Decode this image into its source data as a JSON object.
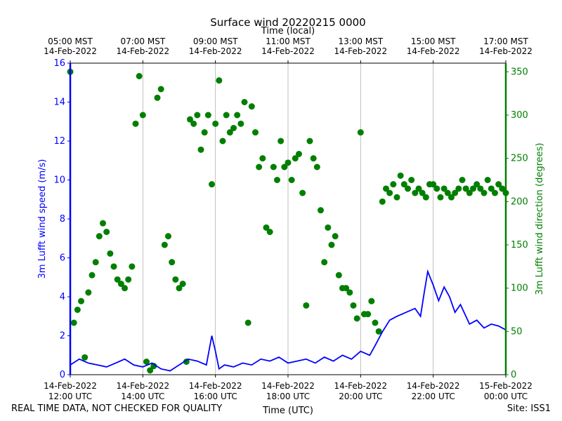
{
  "chart_data": {
    "type": "line+scatter",
    "title": "Surface wind 20220215 0000",
    "top_xlabel": "Time (local)",
    "xlabel": "Time (UTC)",
    "left_ylabel": "3m Lufft wind speed (m/s)",
    "right_ylabel": "3m Lufft wind direction (degrees)",
    "xlim_hours_utc": [
      12,
      24
    ],
    "left_ylim": [
      0,
      16
    ],
    "right_ylim": [
      0,
      360
    ],
    "left_yticks": [
      "0",
      "2",
      "4",
      "6",
      "8",
      "10",
      "12",
      "14",
      "16"
    ],
    "right_yticks": [
      "0",
      "50",
      "100",
      "150",
      "200",
      "250",
      "300",
      "350"
    ],
    "bottom_ticks": [
      {
        "h": 12,
        "date": "14-Feb-2022",
        "time": "12:00 UTC"
      },
      {
        "h": 14,
        "date": "14-Feb-2022",
        "time": "14:00 UTC"
      },
      {
        "h": 16,
        "date": "14-Feb-2022",
        "time": "16:00 UTC"
      },
      {
        "h": 18,
        "date": "14-Feb-2022",
        "time": "18:00 UTC"
      },
      {
        "h": 20,
        "date": "14-Feb-2022",
        "time": "20:00 UTC"
      },
      {
        "h": 22,
        "date": "14-Feb-2022",
        "time": "22:00 UTC"
      },
      {
        "h": 24,
        "date": "15-Feb-2022",
        "time": "00:00 UTC"
      }
    ],
    "top_ticks": [
      {
        "h": 12,
        "time": "05:00 MST",
        "date": "14-Feb-2022"
      },
      {
        "h": 14,
        "time": "07:00 MST",
        "date": "14-Feb-2022"
      },
      {
        "h": 16,
        "time": "09:00 MST",
        "date": "14-Feb-2022"
      },
      {
        "h": 18,
        "time": "11:00 MST",
        "date": "14-Feb-2022"
      },
      {
        "h": 20,
        "time": "13:00 MST",
        "date": "14-Feb-2022"
      },
      {
        "h": 22,
        "time": "15:00 MST",
        "date": "14-Feb-2022"
      },
      {
        "h": 24,
        "time": "17:00 MST",
        "date": "14-Feb-2022"
      }
    ],
    "grid": "vertical",
    "colors": {
      "speed": "#0000ff",
      "direction": "#007f00",
      "grid": "#b0b0b0"
    },
    "speed_series": {
      "x_hours_utc": [
        12.0,
        12.25,
        12.5,
        12.75,
        13.0,
        13.25,
        13.5,
        13.75,
        14.0,
        14.25,
        14.5,
        14.75,
        15.0,
        15.25,
        15.5,
        15.75,
        15.9,
        16.0,
        16.1,
        16.25,
        16.5,
        16.75,
        17.0,
        17.25,
        17.5,
        17.75,
        18.0,
        18.25,
        18.5,
        18.75,
        19.0,
        19.25,
        19.5,
        19.75,
        20.0,
        20.25,
        20.4,
        20.6,
        20.8,
        21.0,
        21.25,
        21.5,
        21.65,
        21.75,
        21.85,
        22.0,
        22.15,
        22.3,
        22.45,
        22.6,
        22.75,
        22.9,
        23.0,
        23.2,
        23.4,
        23.6,
        23.8,
        24.0
      ],
      "values": [
        0.5,
        0.8,
        0.6,
        0.5,
        0.4,
        0.6,
        0.8,
        0.5,
        0.4,
        0.6,
        0.3,
        0.2,
        0.5,
        0.8,
        0.7,
        0.5,
        2.0,
        1.2,
        0.3,
        0.5,
        0.4,
        0.6,
        0.5,
        0.8,
        0.7,
        0.9,
        0.6,
        0.7,
        0.8,
        0.6,
        0.9,
        0.7,
        1.0,
        0.8,
        1.2,
        1.0,
        1.5,
        2.2,
        2.8,
        3.0,
        3.2,
        3.4,
        3.0,
        4.2,
        5.3,
        4.6,
        3.8,
        4.5,
        4.0,
        3.2,
        3.6,
        3.0,
        2.6,
        2.8,
        2.4,
        2.6,
        2.5,
        2.3
      ]
    },
    "direction_series": {
      "x_hours_utc": [
        12.0,
        12.1,
        12.2,
        12.3,
        12.4,
        12.5,
        12.6,
        12.7,
        12.8,
        12.9,
        13.0,
        13.1,
        13.2,
        13.3,
        13.4,
        13.5,
        13.6,
        13.7,
        13.8,
        13.9,
        14.0,
        14.1,
        14.2,
        14.3,
        14.4,
        14.5,
        14.6,
        14.7,
        14.8,
        14.9,
        15.0,
        15.1,
        15.2,
        15.3,
        15.4,
        15.5,
        15.6,
        15.7,
        15.8,
        15.9,
        16.0,
        16.1,
        16.2,
        16.3,
        16.4,
        16.5,
        16.6,
        16.7,
        16.8,
        16.9,
        17.0,
        17.1,
        17.2,
        17.3,
        17.4,
        17.5,
        17.6,
        17.7,
        17.8,
        17.9,
        18.0,
        18.1,
        18.2,
        18.3,
        18.4,
        18.5,
        18.6,
        18.7,
        18.8,
        18.9,
        19.0,
        19.1,
        19.2,
        19.3,
        19.4,
        19.5,
        19.6,
        19.7,
        19.8,
        19.9,
        20.0,
        20.1,
        20.2,
        20.3,
        20.4,
        20.5,
        20.6,
        20.7,
        20.8,
        20.9,
        21.0,
        21.1,
        21.2,
        21.3,
        21.4,
        21.5,
        21.6,
        21.7,
        21.8,
        21.9,
        22.0,
        22.1,
        22.2,
        22.3,
        22.4,
        22.5,
        22.6,
        22.7,
        22.8,
        22.9,
        23.0,
        23.1,
        23.2,
        23.3,
        23.4,
        23.5,
        23.6,
        23.7,
        23.8,
        23.9,
        24.0
      ],
      "values": [
        350,
        60,
        75,
        85,
        20,
        95,
        115,
        130,
        160,
        175,
        165,
        140,
        125,
        110,
        105,
        100,
        110,
        125,
        290,
        345,
        300,
        15,
        5,
        10,
        320,
        330,
        150,
        160,
        130,
        110,
        100,
        105,
        15,
        295,
        290,
        300,
        260,
        280,
        300,
        220,
        290,
        340,
        270,
        300,
        280,
        285,
        300,
        290,
        315,
        60,
        310,
        280,
        240,
        250,
        170,
        165,
        240,
        225,
        270,
        240,
        245,
        225,
        250,
        255,
        210,
        80,
        270,
        250,
        240,
        190,
        130,
        170,
        150,
        160,
        115,
        100,
        100,
        95,
        80,
        65,
        280,
        70,
        70,
        85,
        60,
        50,
        200,
        215,
        210,
        220,
        205,
        230,
        220,
        215,
        225,
        210,
        215,
        210,
        205,
        220,
        220,
        215,
        205,
        215,
        210,
        205,
        210,
        215,
        225,
        215,
        210,
        215,
        220,
        215,
        210,
        225,
        215,
        210,
        220,
        215,
        210
      ]
    }
  },
  "footer": {
    "left": "REAL TIME DATA, NOT CHECKED FOR QUALITY",
    "right": "Site: ISS1"
  }
}
